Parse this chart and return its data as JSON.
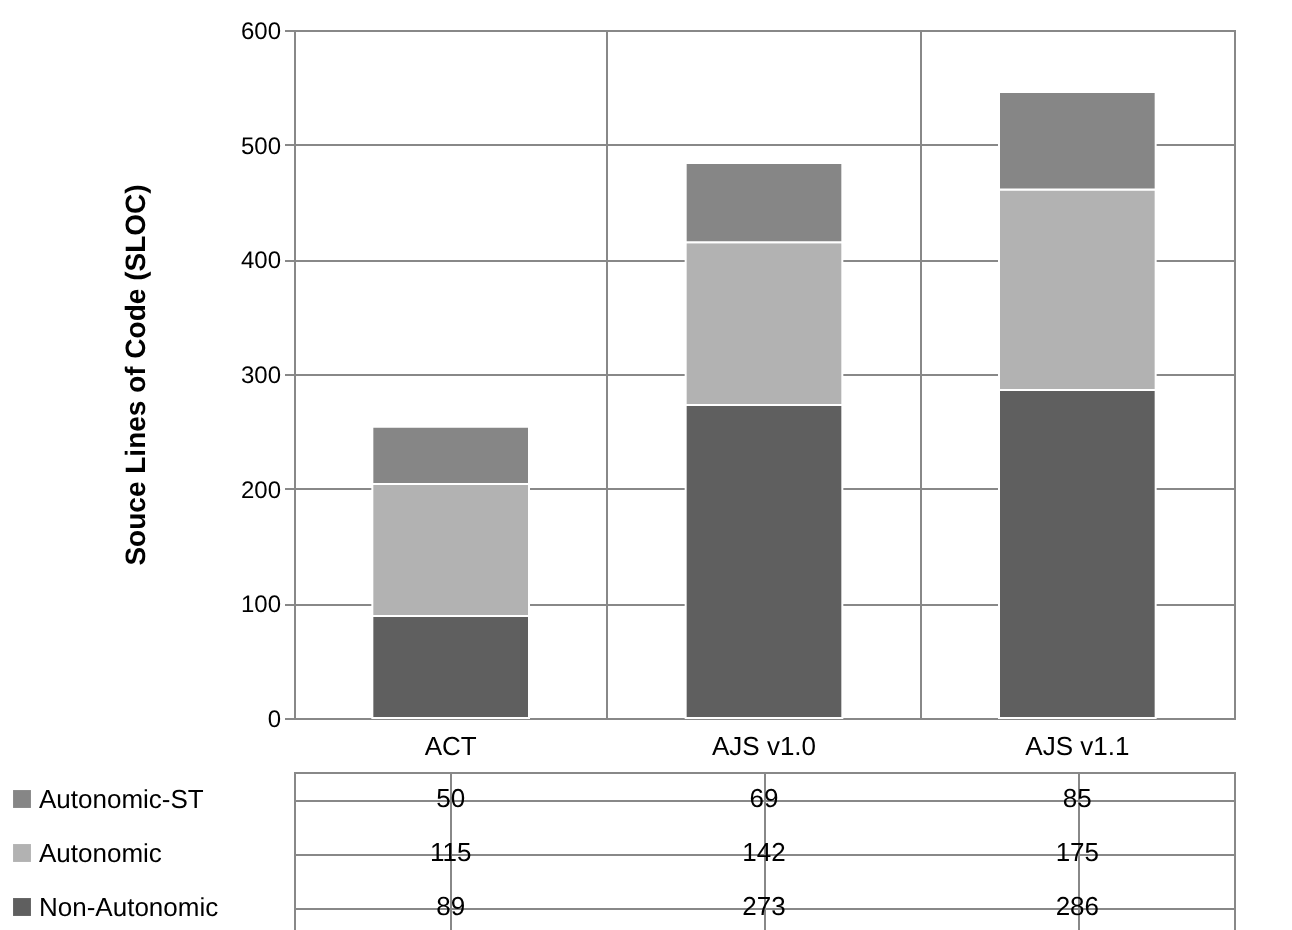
{
  "chart_data": {
    "type": "bar",
    "stacked": true,
    "ylabel": "Souce Lines of Code (SLOC)",
    "categories": [
      "ACT",
      "AJS v1.0",
      "AJS v1.1"
    ],
    "series": [
      {
        "name": "Non-Autonomic",
        "color": "#5f5f5f",
        "values": [
          89,
          273,
          286
        ]
      },
      {
        "name": "Autonomic",
        "color": "#b2b2b2",
        "values": [
          115,
          142,
          175
        ]
      },
      {
        "name": "Autonomic-ST",
        "color": "#868686",
        "values": [
          50,
          69,
          85
        ]
      }
    ],
    "ylim": [
      0,
      600
    ],
    "yticks": [
      0,
      100,
      200,
      300,
      400,
      500,
      600
    ],
    "grid": "y",
    "legend": "bottom",
    "data_labels": true
  }
}
